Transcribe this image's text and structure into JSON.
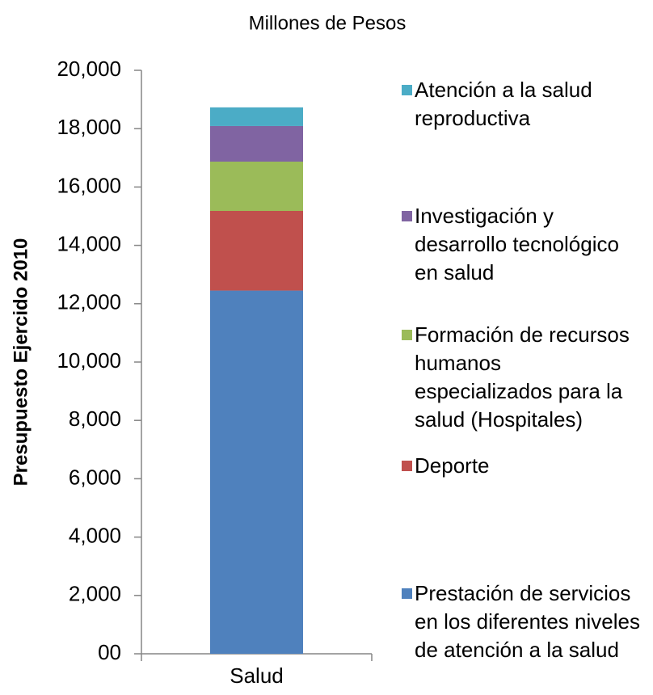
{
  "chart_data": {
    "type": "bar",
    "stacked": true,
    "title": "Millones de Pesos",
    "y_label": "Presupuesto Ejercido 2010",
    "categories": [
      "Salud"
    ],
    "series": [
      {
        "name": "Prestación de servicios en los diferentes niveles de atención a la salud",
        "color": "#4f81bd",
        "values": [
          12450
        ]
      },
      {
        "name": "Deporte",
        "color": "#c0504d",
        "values": [
          2730
        ]
      },
      {
        "name": "Formación de recursos humanos especializados para la salud (Hospitales)",
        "color": "#9bbb59",
        "values": [
          1690
        ]
      },
      {
        "name": "Investigación y desarrollo tecnológico en salud",
        "color": "#8064a2",
        "values": [
          1220
        ]
      },
      {
        "name": "Atención a la salud reproductiva",
        "color": "#4bacc6",
        "values": [
          640
        ]
      }
    ],
    "ylim": [
      0,
      20000
    ],
    "yticks": [
      {
        "value": 0,
        "label": "00"
      },
      {
        "value": 2000,
        "label": "2,000"
      },
      {
        "value": 4000,
        "label": "4,000"
      },
      {
        "value": 6000,
        "label": "6,000"
      },
      {
        "value": 8000,
        "label": "8,000"
      },
      {
        "value": 10000,
        "label": "10,000"
      },
      {
        "value": 12000,
        "label": "12,000"
      },
      {
        "value": 14000,
        "label": "14,000"
      },
      {
        "value": 16000,
        "label": "16,000"
      },
      {
        "value": 18000,
        "label": "18,000"
      },
      {
        "value": 20000,
        "label": "20,000"
      }
    ],
    "grid": false,
    "legend": "right"
  }
}
